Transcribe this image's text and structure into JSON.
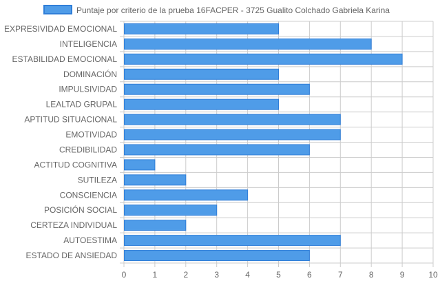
{
  "chart_data": {
    "type": "bar",
    "orientation": "horizontal",
    "categories": [
      "EXPRESIVIDAD EMOCIONAL",
      "INTELIGENCIA",
      "ESTABILIDAD EMOCIONAL",
      "DOMINACIÓN",
      "IMPULSIVIDAD",
      "LEALTAD GRUPAL",
      "APTITUD SITUACIONAL",
      "EMOTIVIDAD",
      "CREDIBILIDAD",
      "ACTITUD COGNITIVA",
      "SUTILEZA",
      "CONSCIENCIA",
      "POSICIÓN SOCIAL",
      "CERTEZA INDIVIDUAL",
      "AUTOESTIMA",
      "ESTADO DE ANSIEDAD"
    ],
    "series": [
      {
        "name": "Puntaje por criterio de la prueba 16FACPER - 3725 Gualito Colchado Gabriela Karina",
        "values": [
          5,
          8,
          9,
          5,
          6,
          5,
          7,
          7,
          6,
          1,
          2,
          4,
          3,
          2,
          7,
          6
        ]
      }
    ],
    "xlim": [
      0,
      10
    ],
    "xticks": [
      "0",
      "1",
      "2",
      "3",
      "4",
      "5",
      "6",
      "7",
      "8",
      "9",
      "10"
    ],
    "grid": true,
    "legend_position": "top",
    "colors": {
      "bar_fill": "#4f9ce8",
      "bar_stroke": "#2f7ed8",
      "grid": "#cccccc"
    }
  }
}
